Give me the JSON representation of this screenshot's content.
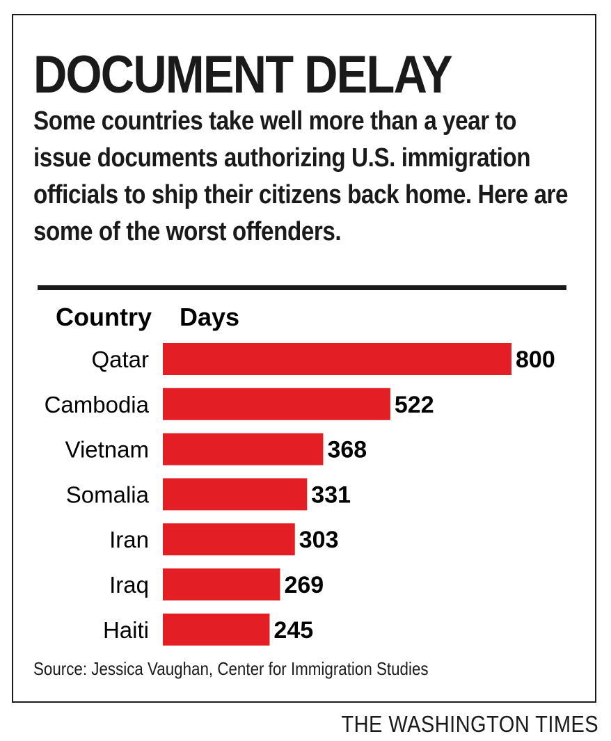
{
  "title": "DOCUMENT DELAY",
  "subtitle": "Some countries take well more than a year to issue documents authorizing U.S. immigration officials to ship their citizens back home. Here are some of the worst offenders.",
  "source": "Source: Jessica Vaughan, Center for Immigration Studies",
  "credit": "THE WASHINGTON TIMES",
  "bar_color": "#e31e24",
  "chart_data": {
    "type": "bar",
    "orientation": "horizontal",
    "category_header": "Country",
    "value_header": "Days",
    "categories": [
      "Qatar",
      "Cambodia",
      "Vietnam",
      "Somalia",
      "Iran",
      "Iraq",
      "Haiti"
    ],
    "values": [
      800,
      522,
      368,
      331,
      303,
      269,
      245
    ],
    "xlim": [
      0,
      800
    ]
  }
}
